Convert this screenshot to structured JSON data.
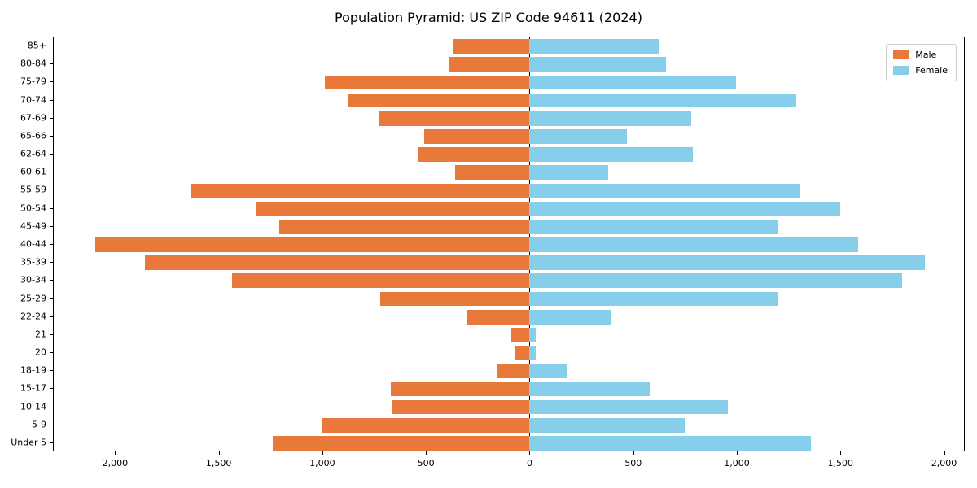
{
  "chart_data": {
    "type": "bar",
    "subtype": "population-pyramid",
    "title": "Population Pyramid: US ZIP Code 94611 (2024)",
    "categories_top_to_bottom": [
      "85+",
      "80-84",
      "75-79",
      "70-74",
      "67-69",
      "65-66",
      "62-64",
      "60-61",
      "55-59",
      "50-54",
      "45-49",
      "40-44",
      "35-39",
      "30-34",
      "25-29",
      "22-24",
      "21",
      "20",
      "18-19",
      "15-17",
      "10-14",
      "5-9",
      "Under 5"
    ],
    "series": [
      {
        "name": "Male",
        "side": "left",
        "color": "#e8793a",
        "values": [
          370,
          390,
          990,
          880,
          730,
          510,
          540,
          360,
          1640,
          1320,
          1210,
          2100,
          1860,
          1440,
          720,
          300,
          90,
          70,
          160,
          670,
          665,
          1000,
          1240
        ]
      },
      {
        "name": "Female",
        "side": "right",
        "color": "#87ceeb",
        "values": [
          630,
          660,
          1000,
          1290,
          780,
          470,
          790,
          380,
          1310,
          1500,
          1200,
          1590,
          1910,
          1800,
          1200,
          390,
          28,
          28,
          180,
          580,
          960,
          750,
          1360
        ]
      }
    ],
    "x_axis": {
      "xlim": [
        -2300,
        2100
      ],
      "tick_values": [
        -2000,
        -1500,
        -1000,
        -500,
        0,
        500,
        1000,
        1500,
        2000
      ],
      "tick_labels": [
        "2,000",
        "1,500",
        "1,000",
        "500",
        "0",
        "500",
        "1,000",
        "1,500",
        "2,000"
      ]
    },
    "legend": {
      "position": "upper-right",
      "entries": [
        "Male",
        "Female"
      ]
    },
    "grid": false,
    "bar_relative_height": 0.8
  }
}
